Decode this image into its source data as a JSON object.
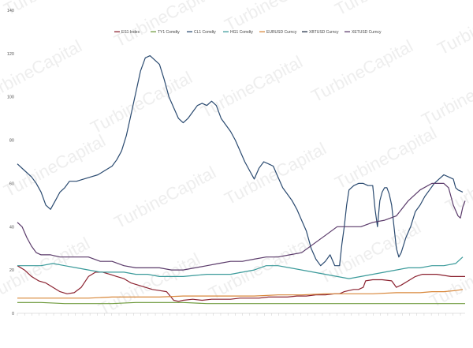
{
  "watermark": {
    "text": "TurbineCapital"
  },
  "chart_data": {
    "type": "line",
    "ylim": [
      0,
      140
    ],
    "y_ticks": [
      0,
      20,
      40,
      60,
      80,
      100,
      120,
      140
    ],
    "x_tick_count": 62,
    "grid": false,
    "legend_position": "top",
    "series": [
      {
        "name": "ES1 Index",
        "color": "#8B2230",
        "points": [
          [
            0,
            22
          ],
          [
            3,
            20
          ],
          [
            6,
            17
          ],
          [
            9,
            15
          ],
          [
            12,
            14
          ],
          [
            15,
            12
          ],
          [
            18,
            10
          ],
          [
            21,
            9
          ],
          [
            24,
            9.5
          ],
          [
            27,
            12
          ],
          [
            30,
            17
          ],
          [
            33,
            19
          ],
          [
            36,
            19
          ],
          [
            39,
            18
          ],
          [
            42,
            17
          ],
          [
            45,
            16
          ],
          [
            48,
            14
          ],
          [
            51,
            13
          ],
          [
            54,
            12
          ],
          [
            57,
            11
          ],
          [
            60,
            10.5
          ],
          [
            63,
            10
          ],
          [
            66,
            6
          ],
          [
            68,
            5.5
          ],
          [
            70,
            6
          ],
          [
            74,
            6.5
          ],
          [
            78,
            6
          ],
          [
            82,
            6.5
          ],
          [
            86,
            6.5
          ],
          [
            90,
            6.5
          ],
          [
            94,
            7
          ],
          [
            98,
            7
          ],
          [
            102,
            7
          ],
          [
            106,
            7.5
          ],
          [
            110,
            7.5
          ],
          [
            114,
            7.5
          ],
          [
            118,
            8
          ],
          [
            122,
            8
          ],
          [
            126,
            8.5
          ],
          [
            130,
            8.5
          ],
          [
            134,
            9
          ],
          [
            136,
            9
          ],
          [
            138,
            10
          ],
          [
            140,
            10.5
          ],
          [
            142,
            11
          ],
          [
            144,
            11
          ],
          [
            146,
            12
          ],
          [
            147,
            15
          ],
          [
            150,
            15.5
          ],
          [
            154,
            15.5
          ],
          [
            158,
            15
          ],
          [
            160,
            12
          ],
          [
            162,
            13
          ],
          [
            165,
            15
          ],
          [
            168,
            17
          ],
          [
            171,
            18
          ],
          [
            174,
            18
          ],
          [
            177,
            18
          ],
          [
            180,
            17.5
          ],
          [
            183,
            17
          ],
          [
            186,
            17
          ],
          [
            189,
            17
          ]
        ]
      },
      {
        "name": "TY1 Comdty",
        "color": "#6E9A3C",
        "points": [
          [
            0,
            5
          ],
          [
            10,
            5
          ],
          [
            20,
            4.5
          ],
          [
            30,
            4.5
          ],
          [
            40,
            4.5
          ],
          [
            50,
            5
          ],
          [
            60,
            5
          ],
          [
            70,
            5
          ],
          [
            80,
            4.5
          ],
          [
            90,
            4.5
          ],
          [
            100,
            4.5
          ],
          [
            110,
            4.5
          ],
          [
            120,
            4.5
          ],
          [
            130,
            4.5
          ],
          [
            140,
            4.5
          ],
          [
            150,
            4.5
          ],
          [
            160,
            4.5
          ],
          [
            170,
            4.5
          ],
          [
            180,
            4.5
          ],
          [
            189,
            4.5
          ]
        ]
      },
      {
        "name": "CL1 Comdty",
        "color": "#2A4A70",
        "points": [
          [
            0,
            69
          ],
          [
            3,
            66
          ],
          [
            6,
            63
          ],
          [
            8,
            60
          ],
          [
            10,
            56
          ],
          [
            12,
            50
          ],
          [
            14,
            48
          ],
          [
            16,
            52
          ],
          [
            18,
            56
          ],
          [
            20,
            58
          ],
          [
            22,
            61
          ],
          [
            25,
            61
          ],
          [
            28,
            62
          ],
          [
            31,
            63
          ],
          [
            34,
            64
          ],
          [
            37,
            66
          ],
          [
            40,
            68
          ],
          [
            42,
            71
          ],
          [
            44,
            75
          ],
          [
            46,
            82
          ],
          [
            48,
            92
          ],
          [
            50,
            102
          ],
          [
            52,
            112
          ],
          [
            54,
            118
          ],
          [
            56,
            119
          ],
          [
            58,
            117
          ],
          [
            60,
            115
          ],
          [
            62,
            108
          ],
          [
            64,
            100
          ],
          [
            66,
            95
          ],
          [
            68,
            90
          ],
          [
            70,
            88
          ],
          [
            72,
            90
          ],
          [
            74,
            93
          ],
          [
            76,
            96
          ],
          [
            78,
            97
          ],
          [
            80,
            96
          ],
          [
            82,
            98
          ],
          [
            84,
            96
          ],
          [
            86,
            90
          ],
          [
            88,
            87
          ],
          [
            90,
            84
          ],
          [
            92,
            80
          ],
          [
            94,
            75
          ],
          [
            96,
            70
          ],
          [
            98,
            66
          ],
          [
            100,
            62
          ],
          [
            102,
            67
          ],
          [
            104,
            70
          ],
          [
            106,
            69
          ],
          [
            108,
            68
          ],
          [
            110,
            63
          ],
          [
            112,
            58
          ],
          [
            114,
            55
          ],
          [
            116,
            52
          ],
          [
            118,
            48
          ],
          [
            120,
            43
          ],
          [
            122,
            38
          ],
          [
            124,
            30
          ],
          [
            126,
            25
          ],
          [
            128,
            22
          ],
          [
            130,
            24
          ],
          [
            132,
            27
          ],
          [
            134,
            22
          ],
          [
            136,
            22
          ],
          [
            137,
            32
          ],
          [
            138,
            40
          ],
          [
            139,
            50
          ],
          [
            140,
            57
          ],
          [
            142,
            59
          ],
          [
            144,
            60
          ],
          [
            146,
            60
          ],
          [
            148,
            59
          ],
          [
            150,
            59
          ],
          [
            151,
            48
          ],
          [
            152,
            40
          ],
          [
            153,
            52
          ],
          [
            154,
            56
          ],
          [
            155,
            58
          ],
          [
            156,
            58
          ],
          [
            157,
            55
          ],
          [
            158,
            50
          ],
          [
            159,
            40
          ],
          [
            160,
            30
          ],
          [
            161,
            26
          ],
          [
            162,
            28
          ],
          [
            164,
            35
          ],
          [
            166,
            40
          ],
          [
            168,
            47
          ],
          [
            170,
            50
          ],
          [
            172,
            54
          ],
          [
            174,
            57
          ],
          [
            176,
            60
          ],
          [
            178,
            62
          ],
          [
            180,
            64
          ],
          [
            182,
            63
          ],
          [
            184,
            62
          ],
          [
            185,
            58
          ],
          [
            186,
            57
          ],
          [
            188,
            56
          ]
        ]
      },
      {
        "name": "HG1 Comdty",
        "color": "#3A9A9A",
        "points": [
          [
            0,
            22
          ],
          [
            5,
            22
          ],
          [
            10,
            22
          ],
          [
            15,
            23
          ],
          [
            20,
            22
          ],
          [
            25,
            21
          ],
          [
            30,
            20
          ],
          [
            35,
            19
          ],
          [
            40,
            19
          ],
          [
            45,
            19
          ],
          [
            50,
            18
          ],
          [
            55,
            18
          ],
          [
            60,
            17
          ],
          [
            65,
            17
          ],
          [
            70,
            17
          ],
          [
            75,
            17.5
          ],
          [
            80,
            18
          ],
          [
            85,
            18
          ],
          [
            90,
            18
          ],
          [
            95,
            19
          ],
          [
            100,
            20
          ],
          [
            105,
            22
          ],
          [
            110,
            22
          ],
          [
            115,
            21
          ],
          [
            120,
            20
          ],
          [
            125,
            19
          ],
          [
            130,
            18
          ],
          [
            135,
            17
          ],
          [
            140,
            16
          ],
          [
            145,
            17
          ],
          [
            150,
            18
          ],
          [
            155,
            19
          ],
          [
            160,
            20
          ],
          [
            165,
            21
          ],
          [
            170,
            21
          ],
          [
            175,
            22
          ],
          [
            180,
            22
          ],
          [
            185,
            23
          ],
          [
            188,
            26
          ]
        ]
      },
      {
        "name": "EURUSD Curncy",
        "color": "#D8873A",
        "points": [
          [
            0,
            7
          ],
          [
            10,
            7
          ],
          [
            20,
            7
          ],
          [
            30,
            7
          ],
          [
            40,
            7.5
          ],
          [
            50,
            7.5
          ],
          [
            60,
            7.5
          ],
          [
            70,
            8
          ],
          [
            80,
            8
          ],
          [
            90,
            8
          ],
          [
            100,
            8
          ],
          [
            110,
            8.5
          ],
          [
            120,
            8.5
          ],
          [
            130,
            9
          ],
          [
            140,
            9
          ],
          [
            150,
            9
          ],
          [
            160,
            9.5
          ],
          [
            170,
            9.5
          ],
          [
            175,
            10
          ],
          [
            180,
            10
          ],
          [
            185,
            10.5
          ],
          [
            188,
            11
          ]
        ]
      },
      {
        "name": "XBTUSD Curncy",
        "color": "#1E2D44",
        "points": []
      },
      {
        "name": "XETUSD Curncy",
        "color": "#5A3A6A",
        "points": [
          [
            0,
            42
          ],
          [
            2,
            40
          ],
          [
            4,
            35
          ],
          [
            6,
            31
          ],
          [
            8,
            28
          ],
          [
            10,
            27
          ],
          [
            14,
            27
          ],
          [
            18,
            26
          ],
          [
            22,
            26
          ],
          [
            26,
            26
          ],
          [
            30,
            26
          ],
          [
            35,
            24
          ],
          [
            40,
            24
          ],
          [
            45,
            22
          ],
          [
            50,
            21
          ],
          [
            55,
            21
          ],
          [
            60,
            21
          ],
          [
            65,
            20
          ],
          [
            70,
            20
          ],
          [
            75,
            21
          ],
          [
            80,
            22
          ],
          [
            85,
            23
          ],
          [
            90,
            24
          ],
          [
            95,
            24
          ],
          [
            100,
            25
          ],
          [
            105,
            26
          ],
          [
            110,
            26
          ],
          [
            115,
            27
          ],
          [
            120,
            28
          ],
          [
            125,
            32
          ],
          [
            130,
            36
          ],
          [
            135,
            40
          ],
          [
            140,
            40
          ],
          [
            145,
            40
          ],
          [
            150,
            42
          ],
          [
            155,
            43
          ],
          [
            160,
            45
          ],
          [
            165,
            52
          ],
          [
            170,
            57
          ],
          [
            175,
            60
          ],
          [
            180,
            60
          ],
          [
            182,
            58
          ],
          [
            184,
            50
          ],
          [
            186,
            45
          ],
          [
            187,
            44
          ],
          [
            188,
            49
          ],
          [
            189,
            52
          ]
        ]
      }
    ]
  }
}
